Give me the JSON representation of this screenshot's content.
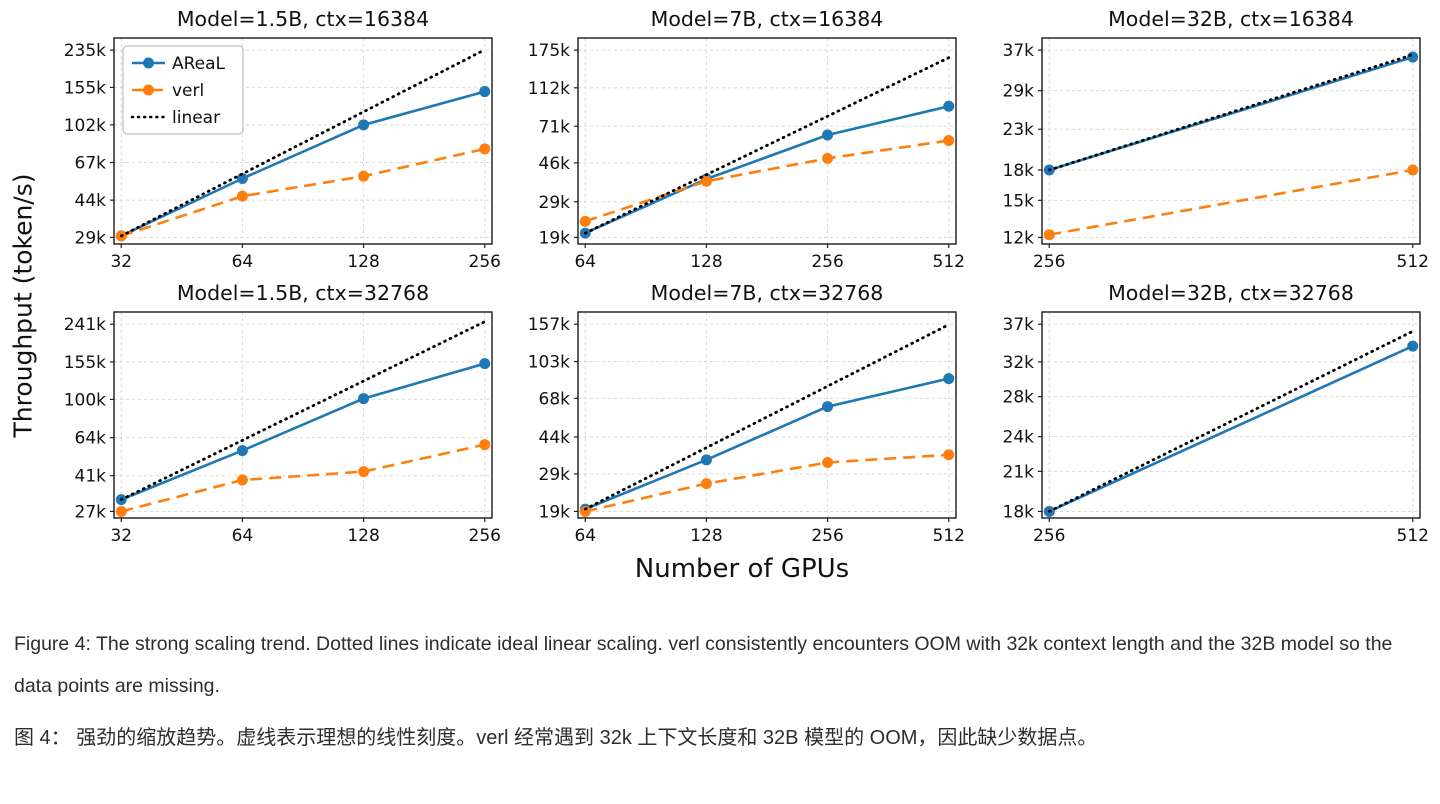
{
  "figure": {
    "ylabel": "Throughput (token/s)",
    "xlabel": "Number of GPUs",
    "xscale": "log",
    "yscale": "log",
    "grid": true,
    "legend_position": "upper-left of first subplot only",
    "colors": {
      "areal": "#1f77b4",
      "verl": "#ff7f0e",
      "linear": "#000000",
      "grid_line": "#d9d9d9"
    }
  },
  "chart_data": [
    {
      "type": "line",
      "title": "Model=1.5B, ctx=16384",
      "x": [
        32,
        64,
        128,
        256
      ],
      "x_tick_labels": [
        "32",
        "64",
        "128",
        "256"
      ],
      "y_ticks": [
        29000,
        44000,
        67000,
        102000,
        155000,
        235000
      ],
      "y_tick_labels": [
        "29k",
        "44k",
        "67k",
        "102k",
        "155k",
        "235k"
      ],
      "legend_visible": true,
      "series": [
        {
          "name": "AReaL",
          "color": "#1f77b4",
          "style": "solid",
          "marker": true,
          "values": [
            29500,
            56000,
            102000,
            148000
          ]
        },
        {
          "name": "verl",
          "color": "#ff7f0e",
          "style": "dashed",
          "marker": true,
          "values": [
            29500,
            46000,
            57500,
            78000
          ]
        },
        {
          "name": "linear",
          "color": "#000000",
          "style": "dotted",
          "marker": false,
          "values": [
            29500,
            59000,
            118000,
            236000
          ]
        }
      ]
    },
    {
      "type": "line",
      "title": "Model=7B, ctx=16384",
      "x": [
        64,
        128,
        256,
        512
      ],
      "x_tick_labels": [
        "64",
        "128",
        "256",
        "512"
      ],
      "y_ticks": [
        19000,
        29000,
        46000,
        71000,
        112000,
        175000
      ],
      "y_tick_labels": [
        "19k",
        "29k",
        "46k",
        "71k",
        "112k",
        "175k"
      ],
      "legend_visible": false,
      "series": [
        {
          "name": "AReaL",
          "color": "#1f77b4",
          "style": "solid",
          "marker": true,
          "values": [
            20000,
            38000,
            64000,
            90000
          ]
        },
        {
          "name": "verl",
          "color": "#ff7f0e",
          "style": "dashed",
          "marker": true,
          "values": [
            23000,
            37000,
            48500,
            60000
          ]
        },
        {
          "name": "linear",
          "color": "#000000",
          "style": "dotted",
          "marker": false,
          "values": [
            20000,
            40000,
            80000,
            160000
          ]
        }
      ]
    },
    {
      "type": "line",
      "title": "Model=32B, ctx=16384",
      "x": [
        256,
        512
      ],
      "x_tick_labels": [
        "256",
        "512"
      ],
      "y_ticks": [
        12000,
        15000,
        18000,
        23000,
        29000,
        37000
      ],
      "y_tick_labels": [
        "12k",
        "15k",
        "18k",
        "23k",
        "29k",
        "37k"
      ],
      "legend_visible": false,
      "series": [
        {
          "name": "AReaL",
          "color": "#1f77b4",
          "style": "solid",
          "marker": true,
          "values": [
            18000,
            35500
          ]
        },
        {
          "name": "verl",
          "color": "#ff7f0e",
          "style": "dashed",
          "marker": true,
          "values": [
            12200,
            18000
          ]
        },
        {
          "name": "linear",
          "color": "#000000",
          "style": "dotted",
          "marker": false,
          "values": [
            18000,
            36000
          ]
        }
      ]
    },
    {
      "type": "line",
      "title": "Model=1.5B, ctx=32768",
      "x": [
        32,
        64,
        128,
        256
      ],
      "x_tick_labels": [
        "32",
        "64",
        "128",
        "256"
      ],
      "y_ticks": [
        27000,
        41000,
        64000,
        100000,
        155000,
        241000
      ],
      "y_tick_labels": [
        "27k",
        "41k",
        "64k",
        "100k",
        "155k",
        "241k"
      ],
      "legend_visible": false,
      "series": [
        {
          "name": "AReaL",
          "color": "#1f77b4",
          "style": "solid",
          "marker": true,
          "values": [
            31000,
            55000,
            101000,
            152000
          ]
        },
        {
          "name": "verl",
          "color": "#ff7f0e",
          "style": "dashed",
          "marker": true,
          "values": [
            27000,
            39000,
            43000,
            59000
          ]
        },
        {
          "name": "linear",
          "color": "#000000",
          "style": "dotted",
          "marker": false,
          "values": [
            31000,
            62000,
            124000,
            248000
          ]
        }
      ]
    },
    {
      "type": "line",
      "title": "Model=7B, ctx=32768",
      "x": [
        64,
        128,
        256,
        512
      ],
      "x_tick_labels": [
        "64",
        "128",
        "256",
        "512"
      ],
      "y_ticks": [
        19000,
        29000,
        44000,
        68000,
        103000,
        157000
      ],
      "y_tick_labels": [
        "19k",
        "29k",
        "44k",
        "68k",
        "103k",
        "157k"
      ],
      "legend_visible": false,
      "series": [
        {
          "name": "AReaL",
          "color": "#1f77b4",
          "style": "solid",
          "marker": true,
          "values": [
            19500,
            34000,
            62000,
            85000
          ]
        },
        {
          "name": "verl",
          "color": "#ff7f0e",
          "style": "dashed",
          "marker": true,
          "values": [
            19000,
            26000,
            33000,
            36000
          ]
        },
        {
          "name": "linear",
          "color": "#000000",
          "style": "dotted",
          "marker": false,
          "values": [
            19500,
            39000,
            78000,
            156000
          ]
        }
      ]
    },
    {
      "type": "line",
      "title": "Model=32B, ctx=32768",
      "x": [
        256,
        512
      ],
      "x_tick_labels": [
        "256",
        "512"
      ],
      "y_ticks": [
        18000,
        21000,
        24000,
        28000,
        32000,
        37000
      ],
      "y_tick_labels": [
        "18k",
        "21k",
        "24k",
        "28k",
        "32k",
        "37k"
      ],
      "legend_visible": false,
      "series": [
        {
          "name": "AReaL",
          "color": "#1f77b4",
          "style": "solid",
          "marker": true,
          "values": [
            18000,
            34000
          ]
        },
        {
          "name": "linear",
          "color": "#000000",
          "style": "dotted",
          "marker": false,
          "values": [
            18000,
            36000
          ]
        }
      ]
    }
  ],
  "caption": {
    "english": "Figure 4: The strong scaling trend. Dotted lines indicate ideal linear scaling. verl consistently encounters OOM with 32k context length and the 32B model so the data points are missing.",
    "chinese": "图 4：  强劲的缩放趋势。虚线表示理想的线性刻度。verl 经常遇到 32k 上下文长度和 32B 模型的 OOM，因此缺少数据点。"
  }
}
